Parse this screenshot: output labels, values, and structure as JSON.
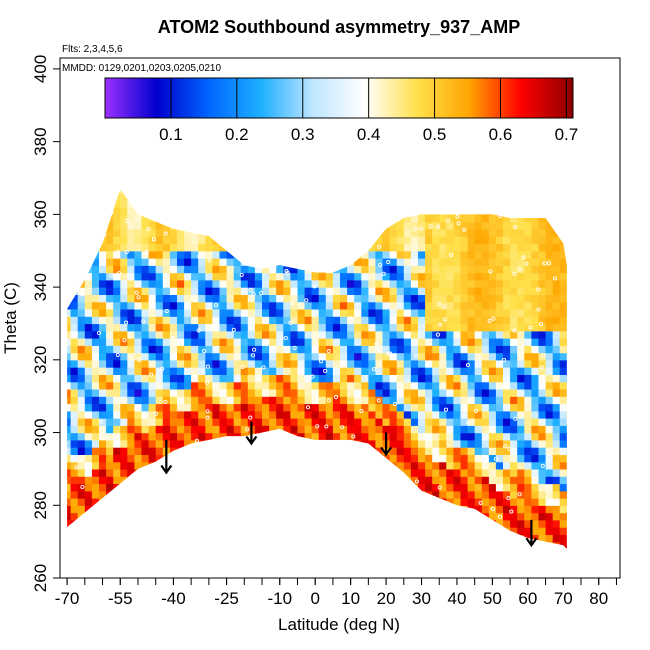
{
  "chart_data": {
    "type": "heatmap",
    "title": "ATOM2 Southbound asymmetry_937_AMP",
    "flights_label": "Flts: 2,3,4,5,6",
    "dates_label": "MMDD: 0129,0201,0203,0205,0210",
    "xlabel": "Latitude (deg N)",
    "ylabel": "Theta (C)",
    "xlim": [
      -72,
      86
    ],
    "ylim": [
      260,
      403
    ],
    "x_ticks": [
      -70,
      -55,
      -40,
      -25,
      -10,
      0,
      10,
      20,
      30,
      40,
      50,
      60,
      70,
      80
    ],
    "x_tick_labels": [
      "-70",
      "-55",
      "-40",
      "-25",
      "-10",
      "0",
      "10",
      "20",
      "30",
      "40",
      "50",
      "60",
      "70",
      "80"
    ],
    "y_ticks": [
      260,
      280,
      300,
      320,
      340,
      360,
      380,
      400
    ],
    "y_tick_labels": [
      "260",
      "280",
      "300",
      "320",
      "340",
      "360",
      "380",
      "400"
    ],
    "colorbar": {
      "range": [
        0.0,
        0.71
      ],
      "ticks": [
        0.1,
        0.2,
        0.3,
        0.4,
        0.5,
        0.6,
        0.7
      ],
      "tick_labels": [
        "0.1",
        "0.2",
        "0.3",
        "0.4",
        "0.5",
        "0.6",
        "0.7"
      ],
      "colors": [
        "#9b30ff",
        "#0000cd",
        "#0066ff",
        "#1eb0ff",
        "#bfe6ff",
        "#ffffff",
        "#ffe14d",
        "#ffa500",
        "#ff0000",
        "#8b0000"
      ]
    },
    "domain_top": [
      [
        -70,
        334
      ],
      [
        -65,
        342
      ],
      [
        -60,
        352
      ],
      [
        -55,
        367
      ],
      [
        -50,
        360
      ],
      [
        -45,
        358
      ],
      [
        -40,
        356
      ],
      [
        -35,
        355
      ],
      [
        -30,
        354
      ],
      [
        -25,
        350
      ],
      [
        -20,
        346
      ],
      [
        -15,
        345
      ],
      [
        -10,
        346
      ],
      [
        -5,
        345
      ],
      [
        0,
        344
      ],
      [
        5,
        344
      ],
      [
        10,
        346
      ],
      [
        15,
        350
      ],
      [
        20,
        356
      ],
      [
        25,
        359
      ],
      [
        30,
        360
      ],
      [
        35,
        360
      ],
      [
        40,
        360
      ],
      [
        45,
        360
      ],
      [
        50,
        360
      ],
      [
        55,
        359
      ],
      [
        60,
        359
      ],
      [
        65,
        359
      ],
      [
        70,
        352
      ],
      [
        71,
        346
      ]
    ],
    "domain_bottom": [
      [
        -70,
        274
      ],
      [
        -65,
        278
      ],
      [
        -60,
        282
      ],
      [
        -55,
        286
      ],
      [
        -50,
        290
      ],
      [
        -45,
        292
      ],
      [
        -40,
        295
      ],
      [
        -35,
        297
      ],
      [
        -30,
        298
      ],
      [
        -25,
        299
      ],
      [
        -20,
        299
      ],
      [
        -15,
        300
      ],
      [
        -10,
        301
      ],
      [
        -5,
        299
      ],
      [
        0,
        298
      ],
      [
        5,
        298
      ],
      [
        10,
        298
      ],
      [
        15,
        297
      ],
      [
        20,
        293
      ],
      [
        25,
        289
      ],
      [
        30,
        284
      ],
      [
        35,
        282
      ],
      [
        40,
        280
      ],
      [
        45,
        279
      ],
      [
        50,
        276
      ],
      [
        55,
        273
      ],
      [
        60,
        271
      ],
      [
        65,
        270
      ],
      [
        70,
        269
      ],
      [
        71,
        268
      ]
    ],
    "arrows": [
      {
        "lat": -42,
        "theta_top": 298,
        "theta_tip": 289
      },
      {
        "lat": -18,
        "theta_top": 303,
        "theta_tip": 297
      },
      {
        "lat": 20,
        "theta_top": 300,
        "theta_tip": 294
      },
      {
        "lat": 61,
        "theta_top": 276,
        "theta_tip": 269
      }
    ]
  }
}
